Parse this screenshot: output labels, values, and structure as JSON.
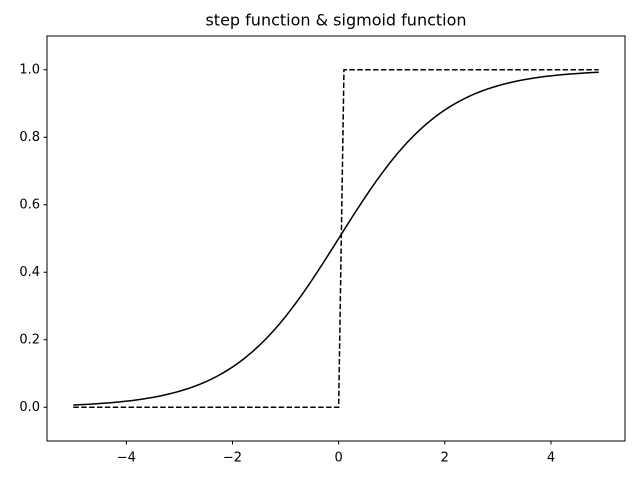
{
  "chart_data": {
    "type": "line",
    "title": "step function & sigmoid function",
    "x": [
      -5.0,
      -4.9,
      -4.8,
      -4.7,
      -4.6,
      -4.5,
      -4.4,
      -4.3,
      -4.2,
      -4.1,
      -4.0,
      -3.9,
      -3.8,
      -3.7,
      -3.6,
      -3.5,
      -3.4,
      -3.3,
      -3.2,
      -3.1,
      -3.0,
      -2.9,
      -2.8,
      -2.7,
      -2.6,
      -2.5,
      -2.4,
      -2.3,
      -2.2,
      -2.1,
      -2.0,
      -1.9,
      -1.8,
      -1.7,
      -1.6,
      -1.5,
      -1.4,
      -1.3,
      -1.2,
      -1.1,
      -1.0,
      -0.9,
      -0.8,
      -0.7,
      -0.6,
      -0.5,
      -0.4,
      -0.3,
      -0.2,
      -0.1,
      0.0,
      0.1,
      0.2,
      0.3,
      0.4,
      0.5,
      0.6,
      0.7,
      0.8,
      0.9,
      1.0,
      1.1,
      1.2,
      1.3,
      1.4,
      1.5,
      1.6,
      1.7,
      1.8,
      1.9,
      2.0,
      2.1,
      2.2,
      2.3,
      2.4,
      2.5,
      2.6,
      2.7,
      2.8,
      2.9,
      3.0,
      3.1,
      3.2,
      3.3,
      3.4,
      3.5,
      3.6,
      3.7,
      3.8,
      3.9,
      4.0,
      4.1,
      4.2,
      4.3,
      4.4,
      4.5,
      4.6,
      4.7,
      4.8,
      4.9
    ],
    "series": [
      {
        "color": "#000000",
        "dash": "dashed",
        "values": [
          0,
          0,
          0,
          0,
          0,
          0,
          0,
          0,
          0,
          0,
          0,
          0,
          0,
          0,
          0,
          0,
          0,
          0,
          0,
          0,
          0,
          0,
          0,
          0,
          0,
          0,
          0,
          0,
          0,
          0,
          0,
          0,
          0,
          0,
          0,
          0,
          0,
          0,
          0,
          0,
          0,
          0,
          0,
          0,
          0,
          0,
          0,
          0,
          0,
          0,
          0,
          1,
          1,
          1,
          1,
          1,
          1,
          1,
          1,
          1,
          1,
          1,
          1,
          1,
          1,
          1,
          1,
          1,
          1,
          1,
          1,
          1,
          1,
          1,
          1,
          1,
          1,
          1,
          1,
          1,
          1,
          1,
          1,
          1,
          1,
          1,
          1,
          1,
          1,
          1,
          1,
          1,
          1,
          1,
          1,
          1,
          1,
          1,
          1,
          1
        ]
      },
      {
        "color": "#000000",
        "dash": "solid",
        "values": [
          0.0067,
          0.0074,
          0.0082,
          0.009,
          0.01,
          0.011,
          0.0121,
          0.0134,
          0.0148,
          0.0163,
          0.018,
          0.0198,
          0.0219,
          0.0241,
          0.0266,
          0.0293,
          0.0323,
          0.0356,
          0.0392,
          0.0431,
          0.0474,
          0.0522,
          0.0573,
          0.063,
          0.0691,
          0.0759,
          0.0832,
          0.0911,
          0.0998,
          0.1091,
          0.1192,
          0.1301,
          0.1419,
          0.1545,
          0.168,
          0.1824,
          0.1978,
          0.2142,
          0.2315,
          0.2497,
          0.2689,
          0.2891,
          0.31,
          0.3318,
          0.3543,
          0.3775,
          0.4013,
          0.4256,
          0.4502,
          0.475,
          0.5,
          0.525,
          0.5498,
          0.5744,
          0.5987,
          0.6225,
          0.6457,
          0.6682,
          0.69,
          0.7109,
          0.7311,
          0.7503,
          0.7685,
          0.7858,
          0.8022,
          0.8176,
          0.832,
          0.8455,
          0.8581,
          0.8699,
          0.8808,
          0.8909,
          0.9002,
          0.9089,
          0.9168,
          0.9241,
          0.9309,
          0.937,
          0.9427,
          0.9478,
          0.9526,
          0.9569,
          0.9608,
          0.9644,
          0.9677,
          0.9707,
          0.9734,
          0.9759,
          0.9781,
          0.9802,
          0.982,
          0.9837,
          0.9852,
          0.9866,
          0.9879,
          0.989,
          0.99,
          0.991,
          0.9918,
          0.9926
        ]
      }
    ],
    "xlim": [
      -5.495,
      5.395
    ],
    "ylim": [
      -0.1,
      1.1
    ],
    "xticks": [
      {
        "value": -4,
        "label": "−4"
      },
      {
        "value": -2,
        "label": "−2"
      },
      0,
      2,
      4
    ],
    "yticks": [
      {
        "value": 0,
        "label": "0.0"
      },
      {
        "value": 0.2,
        "label": "0.2"
      },
      {
        "value": 0.4,
        "label": "0.4"
      },
      {
        "value": 0.6,
        "label": "0.6"
      },
      {
        "value": 0.8,
        "label": "0.8"
      },
      {
        "value": 1,
        "label": "1.0"
      }
    ],
    "grid": false
  }
}
